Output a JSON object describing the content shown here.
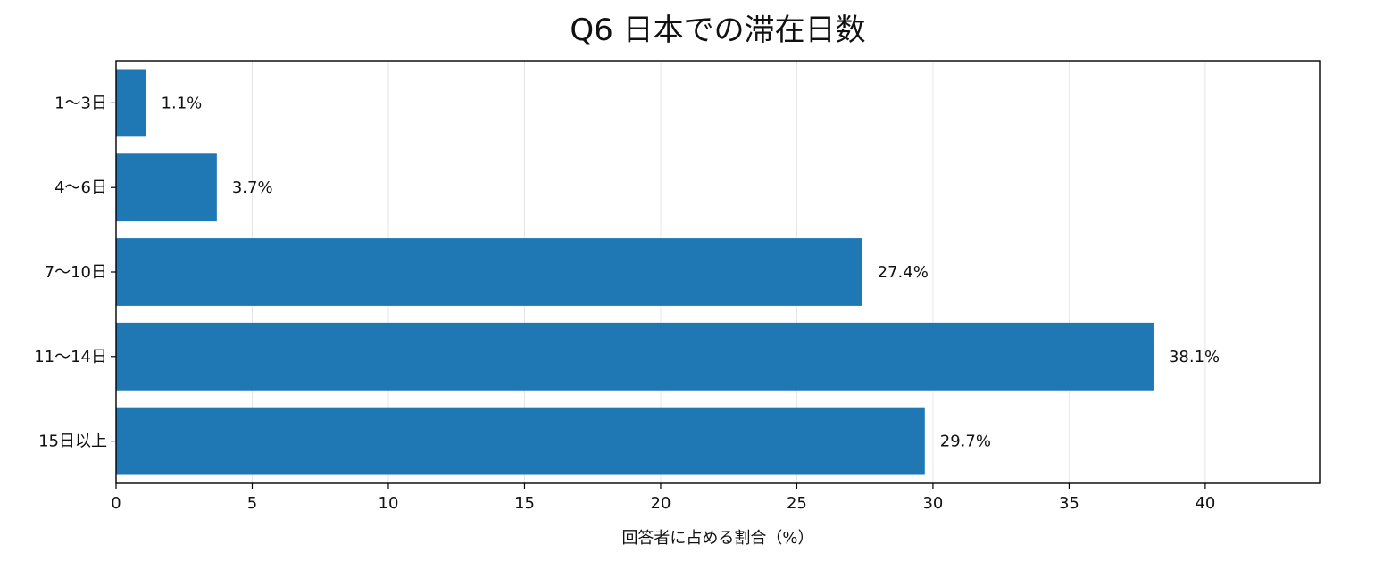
{
  "chart_data": {
    "type": "bar",
    "orientation": "horizontal",
    "title": "Q6 日本での滞在日数",
    "xlabel": "回答者に占める割合（%）",
    "ylabel": "",
    "categories": [
      "1〜3日",
      "4〜6日",
      "7〜10日",
      "11〜14日",
      "15日以上"
    ],
    "values": [
      1.1,
      3.7,
      27.4,
      38.1,
      29.7
    ],
    "value_labels": [
      "1.1%",
      "3.7%",
      "27.4%",
      "38.1%",
      "29.7%"
    ],
    "xlim": [
      0,
      44.2
    ],
    "xticks": [
      0,
      5,
      10,
      15,
      20,
      25,
      30,
      35,
      40
    ],
    "grid": "vertical",
    "bar_color": "#1f77b4"
  }
}
